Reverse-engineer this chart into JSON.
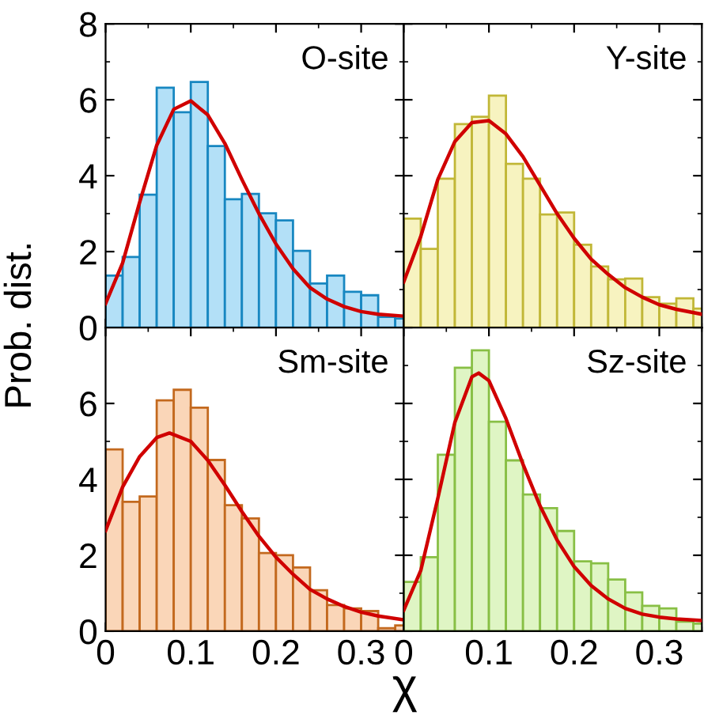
{
  "chart_data": [
    {
      "type": "histogram",
      "ylabel": "Prob. dist.",
      "annotations": [
        "O-site"
      ],
      "bins": [
        0,
        0.02,
        0.04,
        0.06,
        0.08,
        0.1,
        0.12,
        0.14,
        0.16,
        0.18,
        0.2,
        0.22,
        0.24,
        0.26,
        0.28,
        0.3,
        0.32,
        0.34,
        0.36
      ],
      "xlim": [
        0,
        0.35
      ],
      "ylim": [
        0,
        8
      ],
      "xticks": [
        0,
        0.1,
        0.2,
        0.3
      ],
      "yticks": [
        0,
        2,
        4,
        6,
        8
      ],
      "tick_labels": "y",
      "series": [
        {
          "color": "#b3e0f7",
          "values": [
            1.37,
            1.86,
            3.5,
            6.32,
            5.67,
            6.47,
            4.78,
            3.38,
            3.52,
            3.01,
            2.82,
            2.02,
            1.16,
            1.37,
            0.94,
            0.85,
            0.28,
            0.24
          ]
        },
        {
          "type": "line",
          "color": "#d00000",
          "x": [
            0,
            0.02,
            0.04,
            0.06,
            0.08,
            0.1,
            0.12,
            0.14,
            0.16,
            0.18,
            0.2,
            0.22,
            0.24,
            0.26,
            0.28,
            0.3,
            0.32,
            0.35
          ],
          "values": [
            0.63,
            1.7,
            3.3,
            4.8,
            5.75,
            5.97,
            5.6,
            4.85,
            3.9,
            3.0,
            2.2,
            1.55,
            1.05,
            0.75,
            0.55,
            0.42,
            0.35,
            0.3
          ]
        }
      ]
    },
    {
      "type": "histogram",
      "annotations": [
        "Y-site"
      ],
      "bins": [
        0,
        0.02,
        0.04,
        0.06,
        0.08,
        0.1,
        0.12,
        0.14,
        0.16,
        0.18,
        0.2,
        0.22,
        0.24,
        0.26,
        0.28,
        0.3,
        0.32,
        0.34,
        0.36
      ],
      "xlim": [
        0,
        0.35
      ],
      "ylim": [
        0,
        8
      ],
      "xticks": [
        0,
        0.1,
        0.2,
        0.3
      ],
      "yticks": [
        0,
        2,
        4,
        6,
        8
      ],
      "tick_labels": false,
      "series": [
        {
          "color": "#f7f3c0",
          "values": [
            2.87,
            2.07,
            3.92,
            5.36,
            5.55,
            6.11,
            4.31,
            3.92,
            2.98,
            3.03,
            2.18,
            1.61,
            1.27,
            1.29,
            0.8,
            0.63,
            0.77,
            0.5
          ]
        },
        {
          "type": "line",
          "color": "#d00000",
          "x": [
            0,
            0.02,
            0.04,
            0.06,
            0.08,
            0.1,
            0.12,
            0.14,
            0.16,
            0.18,
            0.2,
            0.22,
            0.24,
            0.26,
            0.28,
            0.3,
            0.32,
            0.35
          ],
          "values": [
            1.2,
            2.4,
            3.9,
            4.9,
            5.4,
            5.45,
            5.1,
            4.5,
            3.75,
            3.0,
            2.35,
            1.8,
            1.4,
            1.05,
            0.8,
            0.6,
            0.48,
            0.35
          ]
        }
      ]
    },
    {
      "type": "histogram",
      "annotations": [
        "Sm-site"
      ],
      "bins": [
        0,
        0.02,
        0.04,
        0.06,
        0.08,
        0.1,
        0.12,
        0.14,
        0.16,
        0.18,
        0.2,
        0.22,
        0.24,
        0.26,
        0.28,
        0.3,
        0.32,
        0.34,
        0.36
      ],
      "xlim": [
        0,
        0.35
      ],
      "ylim": [
        0,
        8
      ],
      "xticks": [
        0,
        0.1,
        0.2,
        0.3
      ],
      "yticks": [
        0,
        2,
        4,
        6
      ],
      "series": [
        {
          "color": "#fad6b8",
          "values": [
            4.79,
            3.41,
            3.55,
            6.08,
            6.36,
            5.89,
            4.51,
            3.32,
            2.97,
            2.06,
            2.0,
            1.68,
            1.08,
            0.69,
            0.6,
            0.53,
            0.08,
            0.15
          ]
        },
        {
          "type": "line",
          "color": "#d00000",
          "x": [
            0,
            0.02,
            0.04,
            0.06,
            0.075,
            0.1,
            0.12,
            0.14,
            0.16,
            0.18,
            0.2,
            0.22,
            0.24,
            0.26,
            0.28,
            0.3,
            0.32,
            0.35
          ],
          "values": [
            2.65,
            3.8,
            4.6,
            5.1,
            5.22,
            5.0,
            4.5,
            3.85,
            3.15,
            2.5,
            1.95,
            1.5,
            1.1,
            0.85,
            0.65,
            0.5,
            0.4,
            0.3
          ]
        }
      ]
    },
    {
      "type": "histogram",
      "xlabel": "χ",
      "annotations": [
        "Sz-site"
      ],
      "bins": [
        0,
        0.02,
        0.04,
        0.06,
        0.08,
        0.1,
        0.12,
        0.14,
        0.16,
        0.18,
        0.2,
        0.22,
        0.24,
        0.26,
        0.28,
        0.3,
        0.32,
        0.34,
        0.36
      ],
      "xlim": [
        0,
        0.35
      ],
      "ylim": [
        0,
        8
      ],
      "xticks": [
        0,
        0.1,
        0.2,
        0.3
      ],
      "yticks": [
        0,
        2,
        4,
        6,
        8
      ],
      "tick_labels": "x",
      "series": [
        {
          "color": "#dff5c4",
          "values": [
            1.3,
            1.95,
            4.65,
            6.94,
            7.4,
            5.52,
            4.5,
            3.6,
            3.24,
            2.64,
            1.84,
            1.79,
            1.36,
            1.02,
            0.67,
            0.6,
            0.25,
            0.2
          ]
        },
        {
          "type": "line",
          "color": "#d00000",
          "x": [
            0,
            0.02,
            0.04,
            0.06,
            0.08,
            0.088,
            0.1,
            0.12,
            0.14,
            0.16,
            0.18,
            0.2,
            0.22,
            0.24,
            0.26,
            0.28,
            0.3,
            0.32,
            0.35
          ],
          "values": [
            0.55,
            1.6,
            3.5,
            5.5,
            6.7,
            6.8,
            6.6,
            5.6,
            4.4,
            3.3,
            2.4,
            1.7,
            1.2,
            0.85,
            0.6,
            0.45,
            0.37,
            0.32,
            0.28
          ]
        }
      ]
    }
  ]
}
